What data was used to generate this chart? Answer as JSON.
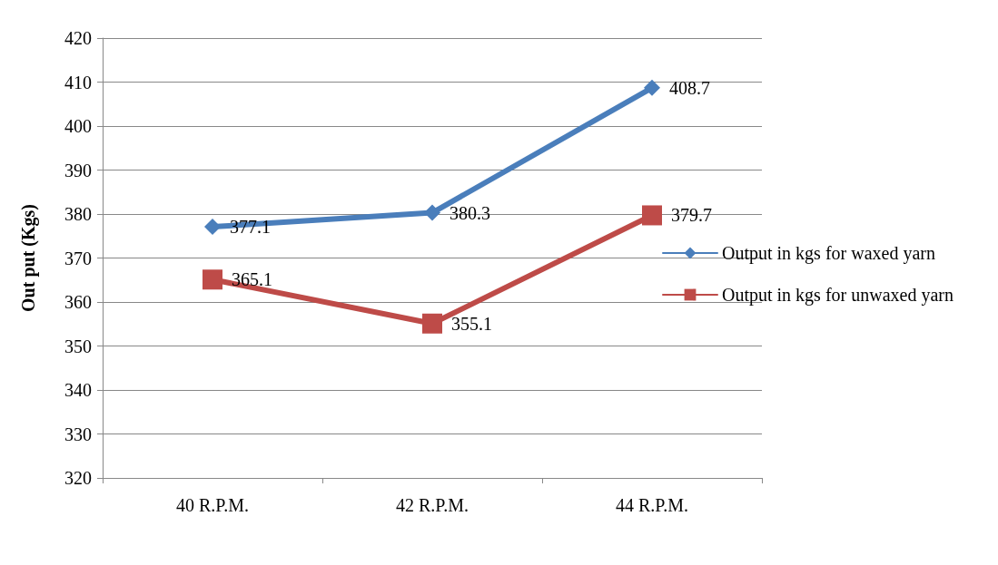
{
  "chart_data": {
    "type": "line",
    "ylabel": "Out put (Kgs)",
    "categories": [
      "40 R.P.M.",
      "42 R.P.M.",
      "44 R.P.M."
    ],
    "series": [
      {
        "name": "Output in kgs for waxed yarn",
        "color": "#4a7ebb",
        "marker": "diamond",
        "values": [
          377.1,
          380.3,
          408.7
        ]
      },
      {
        "name": "Output in kgs for unwaxed yarn",
        "color": "#be4b48",
        "marker": "square",
        "values": [
          365.1,
          355.1,
          379.7
        ]
      }
    ],
    "ylim": [
      320,
      420
    ],
    "yticks": [
      320,
      330,
      340,
      350,
      360,
      370,
      380,
      390,
      400,
      410,
      420
    ],
    "grid": "y",
    "legend": "right",
    "data_labels": true
  }
}
